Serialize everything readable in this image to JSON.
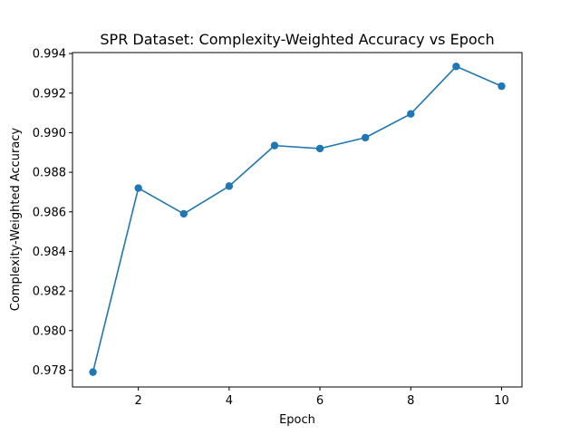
{
  "chart_data": {
    "type": "line",
    "title": "SPR Dataset: Complexity-Weighted Accuracy vs Epoch",
    "xlabel": "Epoch",
    "ylabel": "Complexity-Weighted Accuracy",
    "x": [
      1,
      2,
      3,
      4,
      5,
      6,
      7,
      8,
      9,
      10
    ],
    "series": [
      {
        "values": [
          0.9779,
          0.9872,
          0.9859,
          0.9873,
          0.98935,
          0.9892,
          0.98975,
          0.99095,
          0.99335,
          0.99235
        ],
        "color": "#1f77b4"
      }
    ],
    "xlim": [
      0.55,
      10.45
    ],
    "ylim": [
      0.97715,
      0.99405
    ],
    "xticks": [
      2,
      4,
      6,
      8,
      10
    ],
    "yticks": [
      0.978,
      0.98,
      0.982,
      0.984,
      0.986,
      0.988,
      0.99,
      0.992,
      0.994
    ],
    "xtick_labels": [
      "2",
      "4",
      "6",
      "8",
      "10"
    ],
    "ytick_labels": [
      "0.978",
      "0.980",
      "0.982",
      "0.984",
      "0.986",
      "0.988",
      "0.990",
      "0.992",
      "0.994"
    ],
    "grid": false,
    "legend": "none"
  }
}
